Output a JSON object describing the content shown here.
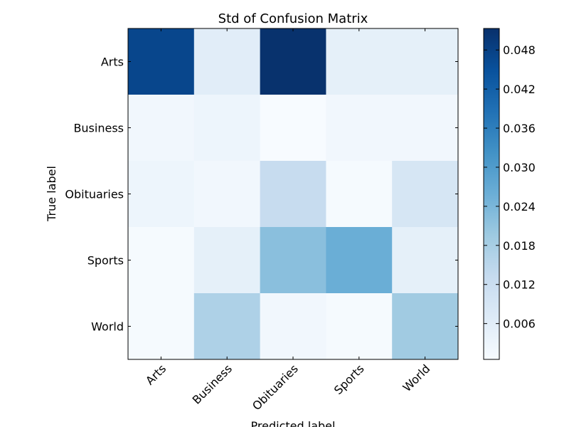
{
  "chart_data": {
    "type": "heatmap",
    "title": "Std of Confusion Matrix",
    "xlabel": "Predicted label",
    "ylabel": "True label",
    "x_categories": [
      "Arts",
      "Business",
      "Obituaries",
      "Sports",
      "World"
    ],
    "y_categories": [
      "Arts",
      "Business",
      "Obituaries",
      "Sports",
      "World"
    ],
    "values": [
      [
        0.047,
        0.006,
        0.051,
        0.005,
        0.005
      ],
      [
        0.002,
        0.003,
        0.0,
        0.002,
        0.002
      ],
      [
        0.003,
        0.002,
        0.013,
        0.001,
        0.009
      ],
      [
        0.001,
        0.005,
        0.022,
        0.026,
        0.005
      ],
      [
        0.001,
        0.017,
        0.002,
        0.001,
        0.019
      ]
    ],
    "colorbar": {
      "vmin": 0.0005,
      "vmax": 0.0513,
      "ticks": [
        "0.006",
        "0.012",
        "0.018",
        "0.024",
        "0.030",
        "0.036",
        "0.042",
        "0.048"
      ],
      "tick_values": [
        0.006,
        0.012,
        0.018,
        0.024,
        0.03,
        0.036,
        0.042,
        0.048
      ]
    },
    "colormap": [
      "#f7fbff",
      "#deebf7",
      "#c6dbef",
      "#9ecae1",
      "#6baed6",
      "#4292c6",
      "#2171b5",
      "#08519c",
      "#08306b"
    ],
    "grid": false
  }
}
